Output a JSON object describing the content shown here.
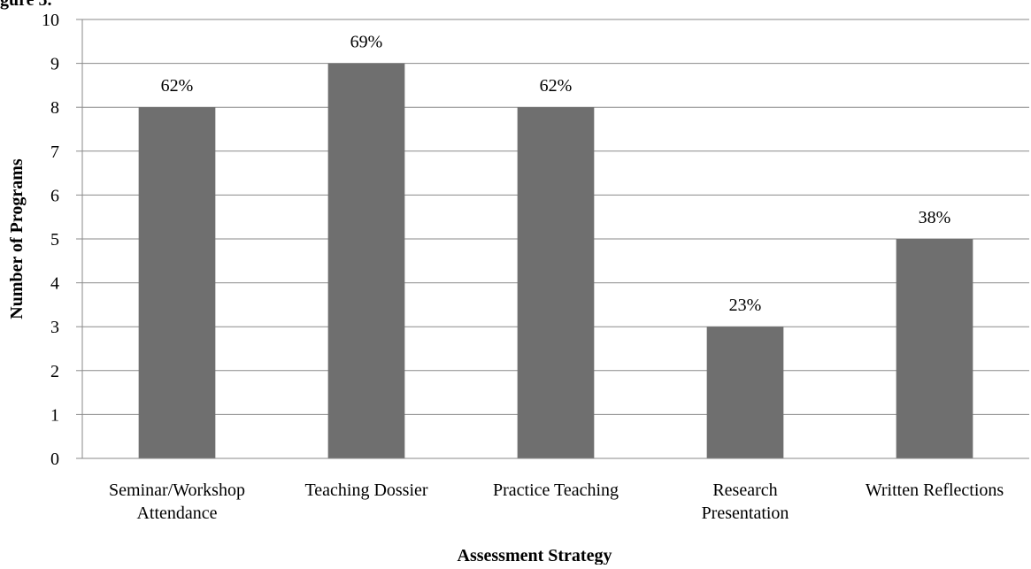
{
  "chart_data": {
    "type": "bar",
    "title_fragment": "gure 5.",
    "xlabel": "Assessment Strategy",
    "ylabel": "Number of Programs",
    "ylim": [
      0,
      10
    ],
    "yticks": [
      "0",
      "1",
      "2",
      "3",
      "4",
      "5",
      "6",
      "7",
      "8",
      "9",
      "10"
    ],
    "grid": true,
    "categories": [
      [
        "Seminar/Workshop",
        "Attendance"
      ],
      [
        "Teaching Dossier"
      ],
      [
        "Practice Teaching"
      ],
      [
        "Research",
        "Presentation"
      ],
      [
        "Written Reflections"
      ]
    ],
    "values": [
      8,
      9,
      8,
      3,
      5
    ],
    "data_labels": [
      "62%",
      "69%",
      "62%",
      "23%",
      "38%"
    ],
    "bar_color": "#6f6f6f",
    "grid_color": "#8a8a8a",
    "axis_color": "#8a8a8a"
  }
}
